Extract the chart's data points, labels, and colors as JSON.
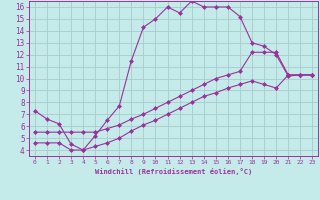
{
  "xlabel": "Windchill (Refroidissement éolien,°C)",
  "xlim": [
    -0.5,
    23.5
  ],
  "ylim": [
    3.5,
    16.5
  ],
  "xticks": [
    0,
    1,
    2,
    3,
    4,
    5,
    6,
    7,
    8,
    9,
    10,
    11,
    12,
    13,
    14,
    15,
    16,
    17,
    18,
    19,
    20,
    21,
    22,
    23
  ],
  "yticks": [
    4,
    5,
    6,
    7,
    8,
    9,
    10,
    11,
    12,
    13,
    14,
    15,
    16
  ],
  "bg_color": "#c5eaea",
  "grid_color": "#a8cccc",
  "line_color": "#993399",
  "curve1_x": [
    0,
    1,
    2,
    3,
    4,
    5,
    6,
    7,
    8,
    9,
    10,
    11,
    12,
    13,
    14,
    15,
    16,
    17,
    18,
    19,
    20,
    21,
    22,
    23
  ],
  "curve1_y": [
    7.3,
    6.6,
    6.2,
    4.5,
    4.0,
    5.2,
    6.5,
    7.7,
    11.5,
    14.3,
    15.0,
    16.0,
    15.5,
    16.5,
    16.0,
    16.0,
    16.0,
    15.2,
    13.0,
    12.7,
    12.0,
    10.2,
    10.3,
    10.3
  ],
  "curve2_x": [
    0,
    1,
    2,
    3,
    4,
    5,
    6,
    7,
    8,
    9,
    10,
    11,
    12,
    13,
    14,
    15,
    16,
    17,
    18,
    19,
    20,
    21,
    22,
    23
  ],
  "curve2_y": [
    5.5,
    5.5,
    5.5,
    5.5,
    5.5,
    5.5,
    5.8,
    6.1,
    6.6,
    7.0,
    7.5,
    8.0,
    8.5,
    9.0,
    9.5,
    10.0,
    10.3,
    10.6,
    12.2,
    12.2,
    12.2,
    10.3,
    10.3,
    10.3
  ],
  "curve3_x": [
    0,
    1,
    2,
    3,
    4,
    5,
    6,
    7,
    8,
    9,
    10,
    11,
    12,
    13,
    14,
    15,
    16,
    17,
    18,
    19,
    20,
    21,
    22,
    23
  ],
  "curve3_y": [
    4.6,
    4.6,
    4.6,
    4.0,
    4.0,
    4.3,
    4.6,
    5.0,
    5.6,
    6.1,
    6.5,
    7.0,
    7.5,
    8.0,
    8.5,
    8.8,
    9.2,
    9.5,
    9.8,
    9.5,
    9.2,
    10.3,
    10.3,
    10.3
  ]
}
